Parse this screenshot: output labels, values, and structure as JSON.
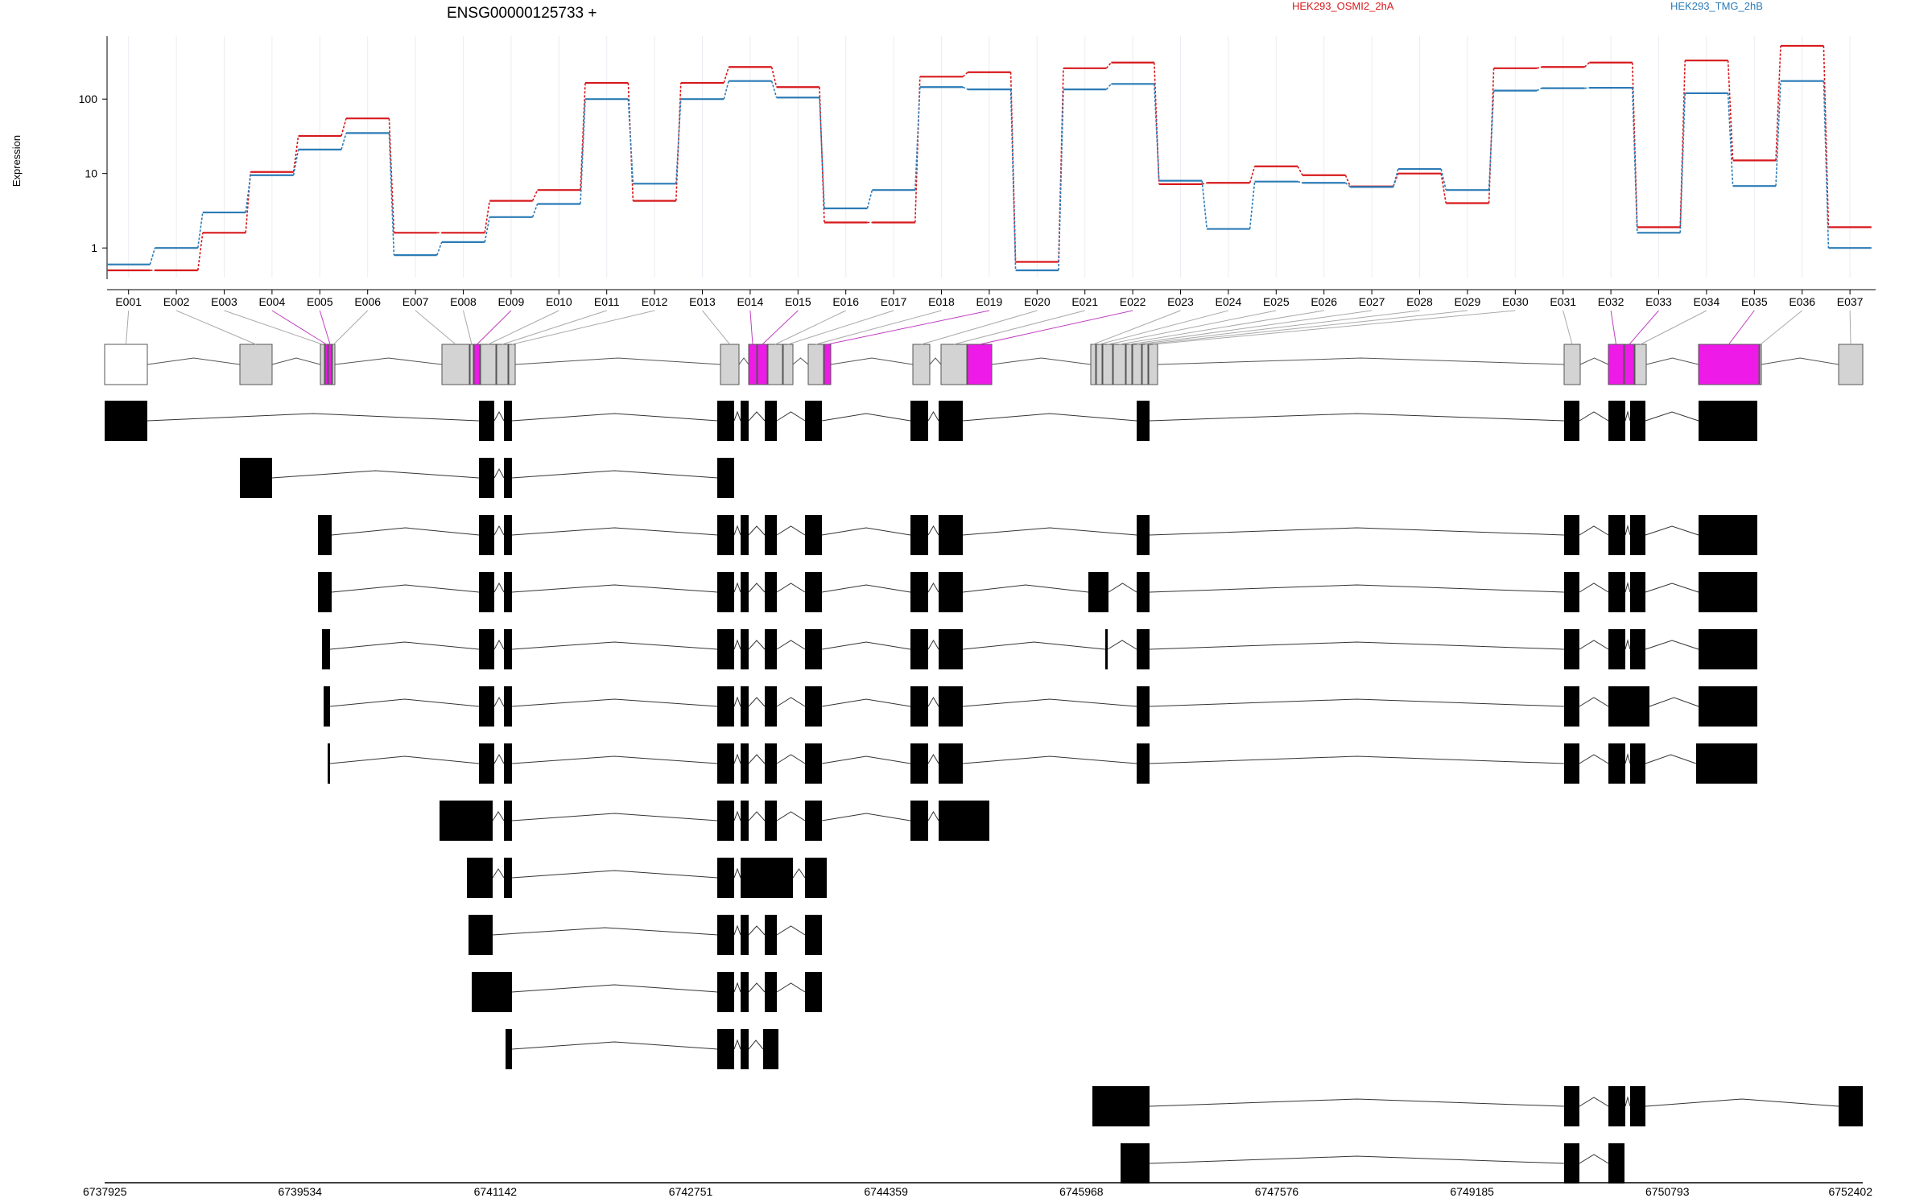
{
  "figure": {
    "gene_title": "ENSG00000125733 +",
    "ylabel": "Expression",
    "y_ticks": [
      "1",
      "10",
      "100"
    ],
    "genomic_ticks": [
      "6737925",
      "6739534",
      "6741142",
      "6742751",
      "6744359",
      "6745968",
      "6747576",
      "6749185",
      "6750793",
      "6752402"
    ]
  },
  "colors": {
    "sample_a": "#d7191c",
    "sample_b": "#2c7bb6",
    "differential_exon": "#ee1ae7",
    "exon_default": "#d3d3d3",
    "transcript_exon": "#000000"
  },
  "chart_data": {
    "type": "line",
    "title": "ENSG00000125733 +",
    "ylabel": "Expression",
    "y_scale": "log",
    "ylim": [
      0.4,
      700
    ],
    "categories": [
      "E001",
      "E002",
      "E003",
      "E004",
      "E005",
      "E006",
      "E007",
      "E008",
      "E009",
      "E010",
      "E011",
      "E012",
      "E013",
      "E014",
      "E015",
      "E016",
      "E017",
      "E018",
      "E019",
      "E020",
      "E021",
      "E022",
      "E023",
      "E024",
      "E025",
      "E026",
      "E027",
      "E028",
      "E029",
      "E030",
      "E031",
      "E032",
      "E033",
      "E034",
      "E035",
      "E036",
      "E037"
    ],
    "series": [
      {
        "name": "HEK293_OSMI2_2hA",
        "color": "#d7191c",
        "values": [
          0.5,
          0.5,
          1.6,
          10.5,
          32,
          55,
          1.6,
          1.6,
          4.3,
          6,
          165,
          4.3,
          165,
          270,
          145,
          2.2,
          2.2,
          200,
          230,
          0.65,
          260,
          310,
          7.2,
          7.5,
          12.5,
          9.5,
          6.7,
          10,
          4,
          260,
          270,
          310,
          1.9,
          330,
          15,
          520,
          1.9
        ]
      },
      {
        "name": "HEK293_TMG_2hB",
        "color": "#2c7bb6",
        "values": [
          0.6,
          1,
          3,
          9.5,
          21,
          35,
          0.8,
          1.2,
          2.6,
          3.9,
          100,
          7.3,
          100,
          175,
          105,
          3.4,
          6,
          145,
          135,
          0.5,
          135,
          160,
          8,
          1.8,
          7.8,
          7.5,
          6.6,
          11.5,
          6,
          130,
          140,
          142,
          1.6,
          120,
          6.8,
          175,
          1
        ]
      }
    ],
    "genomic_range": [
      6737925,
      6752402
    ],
    "differential_exons": [
      "E004",
      "E005",
      "E009",
      "E014",
      "E015",
      "E019",
      "E022",
      "E032",
      "E033",
      "E035"
    ]
  }
}
